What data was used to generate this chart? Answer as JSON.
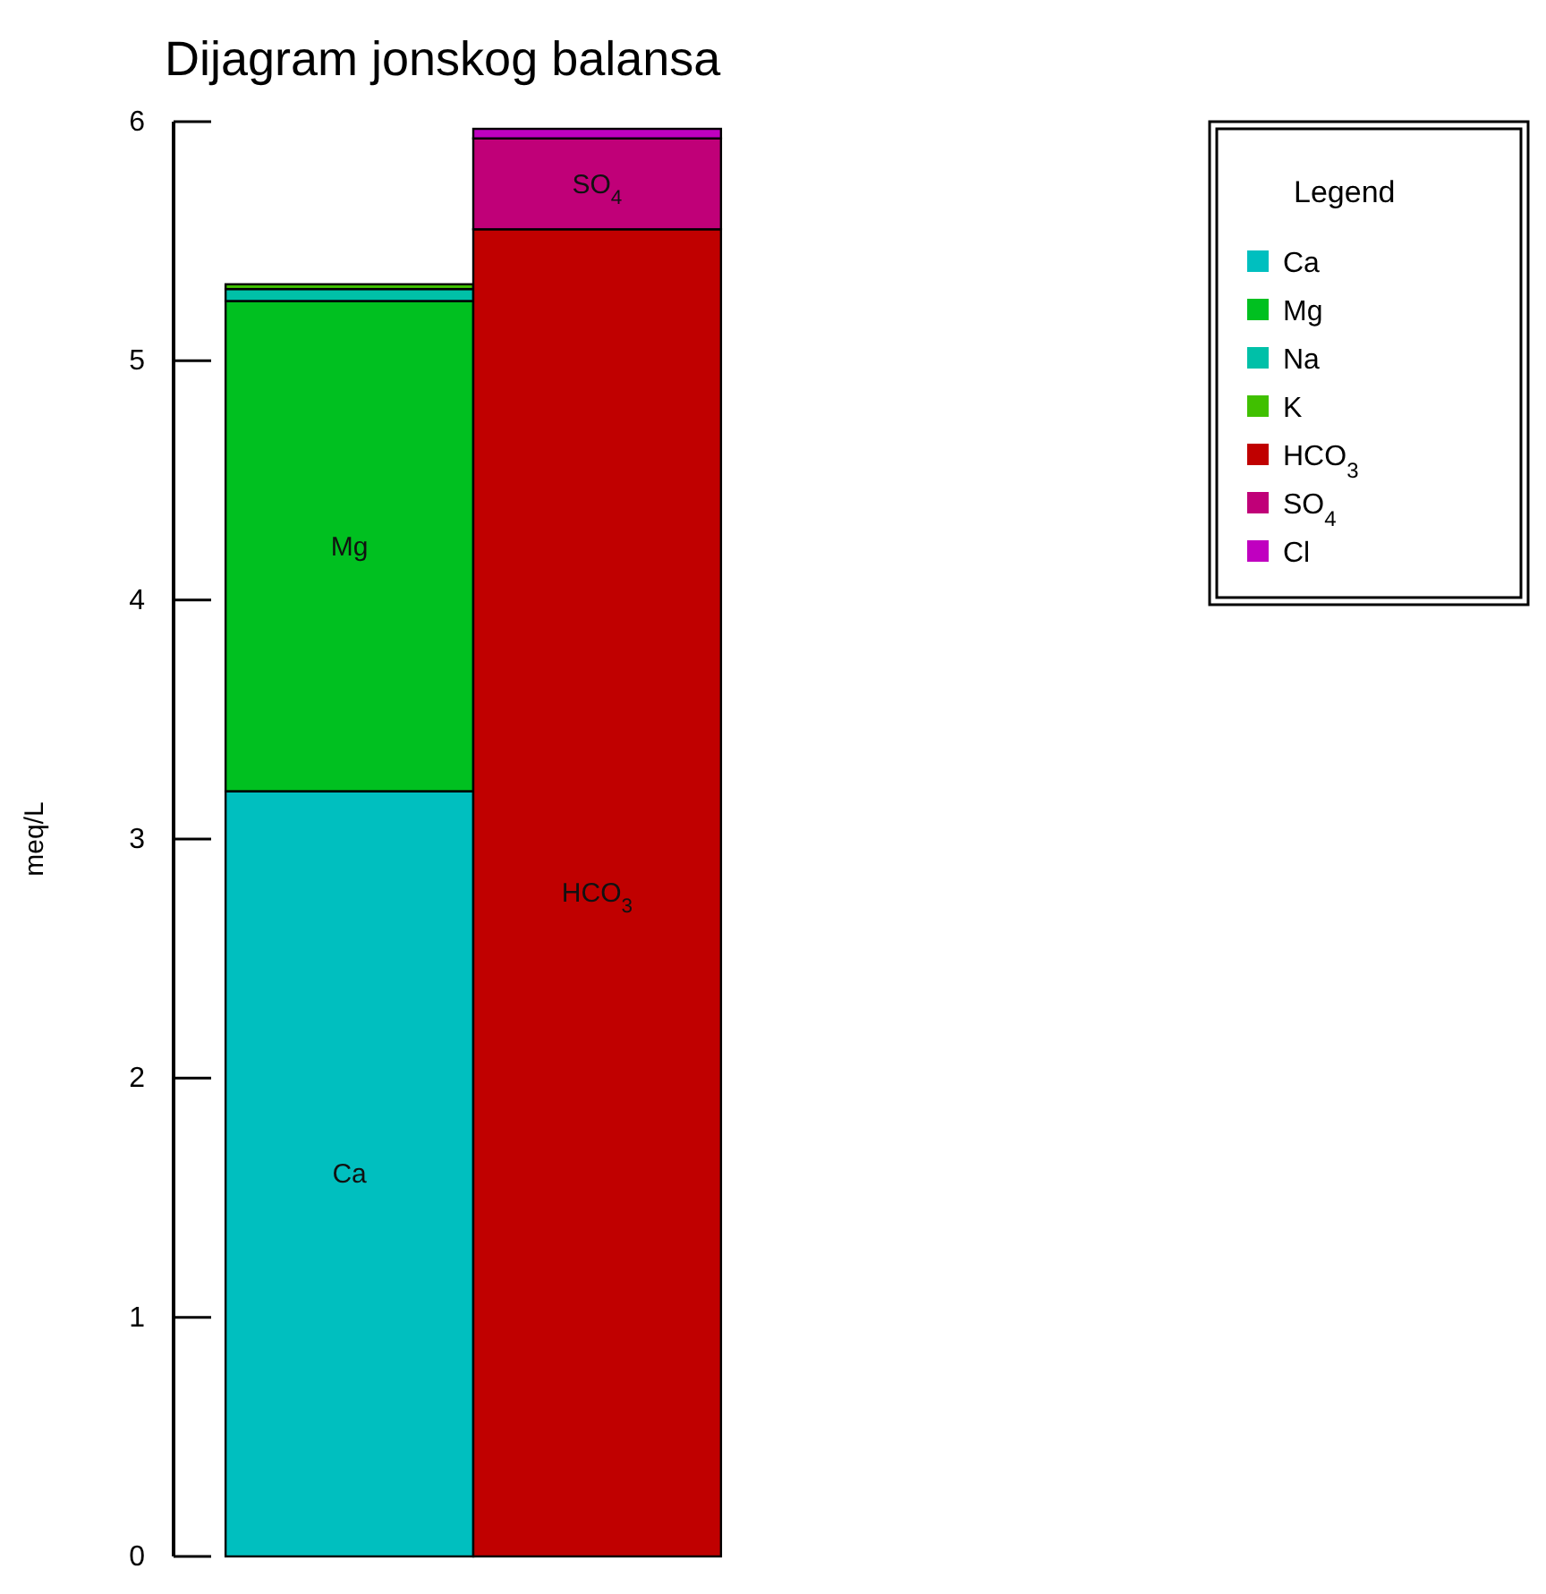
{
  "chart_data": {
    "type": "bar",
    "title": "Dijagram jonskog balansa",
    "ylabel": "meq/L",
    "legend_title": "Legend",
    "categories": [
      null,
      null
    ],
    "stacked": true,
    "legend": "top right",
    "ylim": [
      0,
      6
    ],
    "yticks": [
      0,
      1,
      2,
      3,
      4,
      5,
      6
    ],
    "series": [
      {
        "name": "Ca",
        "color": "#00bfbf",
        "values": [
          3.2,
          null
        ]
      },
      {
        "name": "Mg",
        "color": "#00c020",
        "values": [
          2.05,
          null
        ]
      },
      {
        "name": "Na",
        "color": "#00c0a8",
        "values": [
          0.05,
          null
        ]
      },
      {
        "name": "K",
        "color": "#40c000",
        "values": [
          0.02,
          null
        ]
      },
      {
        "name": "HCO$_{3}$",
        "color": "#c00000",
        "values": [
          null,
          5.55
        ]
      },
      {
        "name": "SO$_{4}$",
        "color": "#c00078",
        "values": [
          null,
          0.38
        ]
      },
      {
        "name": "Cl",
        "color": "#c000c0",
        "values": [
          null,
          0.04
        ]
      }
    ]
  }
}
